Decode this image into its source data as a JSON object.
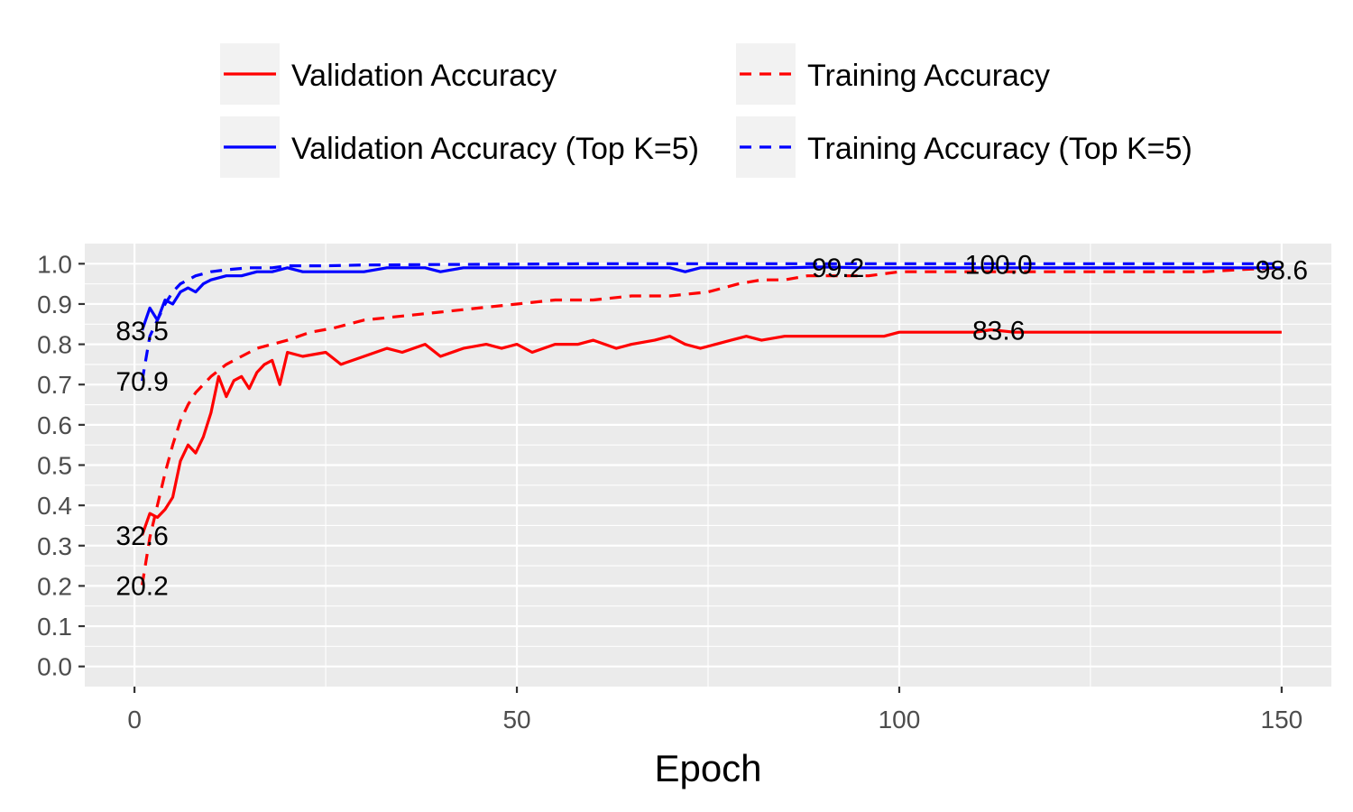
{
  "chart_data": {
    "type": "line",
    "title": "",
    "xlabel": "Epoch",
    "ylabel": "",
    "xlim": [
      -6.5,
      156.5
    ],
    "ylim": [
      -0.05,
      1.05
    ],
    "x_ticks": [
      "0",
      "50",
      "100",
      "150"
    ],
    "y_ticks": [
      "0.0",
      "0.1",
      "0.2",
      "0.3",
      "0.4",
      "0.5",
      "0.6",
      "0.7",
      "0.8",
      "0.9",
      "1.0"
    ],
    "grid": true,
    "legend_position": "top",
    "series": [
      {
        "name": "Validation Accuracy",
        "color": "#ff0000",
        "linetype": "solid",
        "x": [
          1,
          2,
          3,
          4,
          5,
          6,
          7,
          8,
          9,
          10,
          11,
          12,
          13,
          14,
          15,
          16,
          17,
          18,
          19,
          20,
          22,
          25,
          27,
          30,
          33,
          35,
          38,
          40,
          43,
          46,
          48,
          50,
          52,
          55,
          58,
          60,
          63,
          65,
          68,
          70,
          72,
          74,
          76,
          78,
          80,
          82,
          85,
          88,
          90,
          93,
          95,
          98,
          100,
          103,
          106,
          110,
          112,
          115,
          118,
          120,
          125,
          130,
          135,
          140,
          145,
          148,
          150
        ],
        "y": [
          0.326,
          0.38,
          0.37,
          0.39,
          0.42,
          0.51,
          0.55,
          0.53,
          0.57,
          0.63,
          0.72,
          0.67,
          0.71,
          0.72,
          0.69,
          0.73,
          0.75,
          0.76,
          0.7,
          0.78,
          0.77,
          0.78,
          0.75,
          0.77,
          0.79,
          0.78,
          0.8,
          0.77,
          0.79,
          0.8,
          0.79,
          0.8,
          0.78,
          0.8,
          0.8,
          0.81,
          0.79,
          0.8,
          0.81,
          0.82,
          0.8,
          0.79,
          0.8,
          0.81,
          0.82,
          0.81,
          0.82,
          0.82,
          0.82,
          0.82,
          0.82,
          0.82,
          0.83,
          0.83,
          0.83,
          0.83,
          0.836,
          0.83,
          0.83,
          0.83,
          0.83,
          0.83,
          0.83,
          0.83,
          0.83,
          0.83,
          0.83
        ]
      },
      {
        "name": "Training Accuracy",
        "color": "#ff0000",
        "linetype": "dashed",
        "x": [
          1,
          2,
          3,
          4,
          5,
          6,
          7,
          8,
          9,
          10,
          12,
          14,
          16,
          18,
          20,
          23,
          26,
          30,
          35,
          40,
          45,
          50,
          55,
          60,
          65,
          70,
          75,
          77,
          79,
          82,
          85,
          88,
          92,
          96,
          100,
          105,
          110,
          115,
          120,
          125,
          130,
          135,
          140,
          145,
          150
        ],
        "y": [
          0.202,
          0.32,
          0.4,
          0.48,
          0.55,
          0.61,
          0.65,
          0.68,
          0.7,
          0.72,
          0.75,
          0.77,
          0.79,
          0.8,
          0.81,
          0.83,
          0.84,
          0.86,
          0.87,
          0.88,
          0.89,
          0.9,
          0.91,
          0.91,
          0.92,
          0.92,
          0.93,
          0.94,
          0.95,
          0.96,
          0.96,
          0.97,
          0.97,
          0.97,
          0.98,
          0.98,
          0.98,
          0.98,
          0.98,
          0.98,
          0.98,
          0.98,
          0.98,
          0.986,
          0.99
        ]
      },
      {
        "name": "Validation Accuracy (Top K=5)",
        "color": "#0000ff",
        "linetype": "solid",
        "x": [
          1,
          2,
          3,
          4,
          5,
          6,
          7,
          8,
          9,
          10,
          12,
          14,
          16,
          18,
          20,
          22,
          25,
          27,
          30,
          33,
          35,
          38,
          40,
          43,
          46,
          50,
          55,
          60,
          65,
          70,
          72,
          74,
          76,
          80,
          85,
          90,
          95,
          100,
          105,
          110,
          115,
          120,
          125,
          130,
          135,
          140,
          145,
          150
        ],
        "y": [
          0.835,
          0.89,
          0.86,
          0.91,
          0.9,
          0.93,
          0.94,
          0.93,
          0.95,
          0.96,
          0.97,
          0.97,
          0.98,
          0.98,
          0.99,
          0.98,
          0.98,
          0.98,
          0.98,
          0.99,
          0.99,
          0.99,
          0.98,
          0.99,
          0.99,
          0.99,
          0.99,
          0.99,
          0.99,
          0.99,
          0.98,
          0.99,
          0.99,
          0.99,
          0.99,
          0.992,
          0.99,
          0.99,
          0.99,
          0.99,
          0.99,
          0.99,
          0.99,
          0.99,
          0.99,
          0.99,
          0.99,
          0.99
        ]
      },
      {
        "name": "Training Accuracy (Top K=5)",
        "color": "#0000ff",
        "linetype": "dashed",
        "x": [
          1,
          2,
          3,
          4,
          5,
          6,
          7,
          8,
          10,
          12,
          15,
          18,
          20,
          25,
          30,
          40,
          50,
          60,
          80,
          100,
          110,
          120,
          140,
          150
        ],
        "y": [
          0.709,
          0.82,
          0.86,
          0.9,
          0.93,
          0.95,
          0.96,
          0.97,
          0.98,
          0.985,
          0.99,
          0.99,
          0.995,
          0.995,
          0.997,
          0.998,
          0.999,
          1.0,
          1.0,
          1.0,
          1.0,
          1.0,
          1.0,
          1.0
        ]
      }
    ],
    "annotations": [
      {
        "text": "83.5",
        "x": 1,
        "y": 0.835
      },
      {
        "text": "70.9",
        "x": 1,
        "y": 0.709
      },
      {
        "text": "32.6",
        "x": 1,
        "y": 0.326
      },
      {
        "text": "20.2",
        "x": 1,
        "y": 0.202
      },
      {
        "text": "99.2",
        "x": 92,
        "y": 0.992
      },
      {
        "text": "100.0",
        "x": 113,
        "y": 1.0
      },
      {
        "text": "83.6",
        "x": 113,
        "y": 0.836
      },
      {
        "text": "98.6",
        "x": 150,
        "y": 0.986
      }
    ]
  }
}
